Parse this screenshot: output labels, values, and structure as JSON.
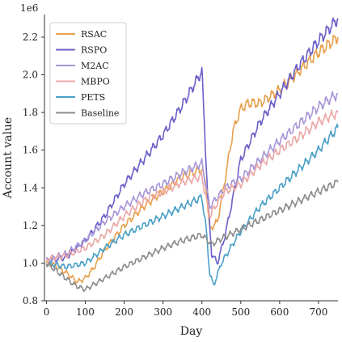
{
  "chart_data": {
    "type": "line",
    "xlabel": "Day",
    "ylabel": "Account value",
    "y_exponent_label": "1e6",
    "xlim": [
      -5,
      750
    ],
    "ylim": [
      0.8,
      2.32
    ],
    "x_ticks": [
      0,
      100,
      200,
      300,
      400,
      500,
      600,
      700
    ],
    "x_tick_labels": [
      "0",
      "100",
      "200",
      "300",
      "400",
      "500",
      "600",
      "700"
    ],
    "y_ticks": [
      0.8,
      1.0,
      1.2,
      1.4,
      1.6,
      1.8,
      2.0,
      2.2
    ],
    "y_tick_labels": [
      "0.8",
      "1.0",
      "1.2",
      "1.4",
      "1.6",
      "1.8",
      "2.0",
      "2.2"
    ],
    "grid": false,
    "legend_position": "top-left",
    "series": [
      {
        "name": "RSAC",
        "color": "#e8a04c",
        "x": [
          0,
          20,
          50,
          80,
          100,
          120,
          150,
          200,
          250,
          300,
          350,
          400,
          410,
          420,
          440,
          460,
          480,
          500,
          520,
          550,
          600,
          650,
          700,
          750
        ],
        "y": [
          1.0,
          0.99,
          0.95,
          0.9,
          0.92,
          0.97,
          1.07,
          1.2,
          1.3,
          1.38,
          1.46,
          1.5,
          1.42,
          1.18,
          1.22,
          1.45,
          1.7,
          1.82,
          1.85,
          1.85,
          1.92,
          2.02,
          2.12,
          2.2
        ]
      },
      {
        "name": "RSPO",
        "color": "#6a5fc8",
        "x": [
          0,
          50,
          100,
          150,
          200,
          250,
          300,
          350,
          400,
          405,
          415,
          425,
          440,
          460,
          480,
          500,
          550,
          600,
          650,
          700,
          750
        ],
        "y": [
          1.01,
          1.03,
          1.12,
          1.25,
          1.42,
          1.55,
          1.68,
          1.84,
          2.02,
          1.8,
          1.35,
          1.05,
          1.0,
          1.15,
          1.35,
          1.55,
          1.75,
          1.9,
          2.05,
          2.18,
          2.3
        ]
      },
      {
        "name": "M2AC",
        "color": "#a896d8",
        "x": [
          0,
          50,
          100,
          150,
          200,
          250,
          300,
          350,
          400,
          420,
          440,
          460,
          500,
          550,
          600,
          650,
          700,
          750
        ],
        "y": [
          1.02,
          1.05,
          1.12,
          1.22,
          1.3,
          1.37,
          1.42,
          1.48,
          1.53,
          1.3,
          1.35,
          1.4,
          1.45,
          1.55,
          1.65,
          1.74,
          1.83,
          1.9
        ]
      },
      {
        "name": "MBPO",
        "color": "#eba8a8",
        "x": [
          0,
          50,
          100,
          150,
          200,
          250,
          300,
          350,
          400,
          420,
          440,
          460,
          500,
          550,
          600,
          650,
          700,
          750
        ],
        "y": [
          1.02,
          1.04,
          1.08,
          1.15,
          1.25,
          1.33,
          1.38,
          1.43,
          1.46,
          1.25,
          1.32,
          1.38,
          1.42,
          1.52,
          1.6,
          1.67,
          1.75,
          1.8
        ]
      },
      {
        "name": "PETS",
        "color": "#4aa0c8",
        "x": [
          0,
          50,
          100,
          150,
          200,
          250,
          300,
          350,
          400,
          410,
          420,
          430,
          450,
          500,
          550,
          600,
          650,
          700,
          750
        ],
        "y": [
          1.0,
          0.98,
          1.0,
          1.08,
          1.15,
          1.2,
          1.25,
          1.3,
          1.35,
          1.2,
          0.95,
          0.88,
          1.0,
          1.17,
          1.3,
          1.4,
          1.5,
          1.6,
          1.72
        ]
      },
      {
        "name": "Baseline",
        "color": "#8c8c8c",
        "x": [
          0,
          25,
          50,
          75,
          100,
          150,
          200,
          250,
          300,
          350,
          400,
          425,
          450,
          500,
          550,
          600,
          650,
          700,
          750
        ],
        "y": [
          1.0,
          0.96,
          0.92,
          0.88,
          0.86,
          0.92,
          0.98,
          1.03,
          1.08,
          1.12,
          1.15,
          1.1,
          1.13,
          1.18,
          1.23,
          1.28,
          1.33,
          1.38,
          1.43
        ]
      }
    ]
  }
}
